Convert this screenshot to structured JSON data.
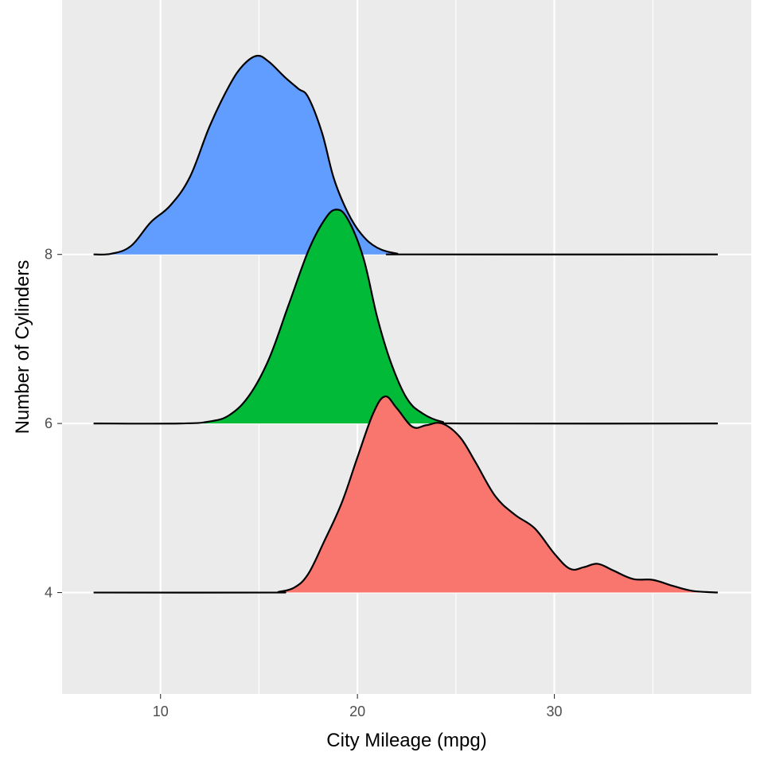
{
  "chart_data": {
    "type": "area",
    "subtype": "ridgeline",
    "xlabel": "City Mileage (mpg)",
    "ylabel": "Number of Cylinders",
    "xlim": [
      5.0,
      40.0
    ],
    "x_ticks": [
      10,
      20,
      30
    ],
    "x_tick_labels": [
      "10",
      "20",
      "30"
    ],
    "y_ticks": [
      "4",
      "6",
      "8"
    ],
    "ridge_scale_in_categories": 1.5,
    "grid": true,
    "legend": "none",
    "panel_color": "#EBEBEB",
    "series": [
      {
        "category": "8",
        "color": "#619CFF",
        "x_range": [
          6.6,
          38.3
        ],
        "points": [
          [
            6.6,
            0.0
          ],
          [
            7.5,
            0.004
          ],
          [
            8.5,
            0.05
          ],
          [
            9.5,
            0.19
          ],
          [
            10.5,
            0.29
          ],
          [
            11.5,
            0.46
          ],
          [
            12.5,
            0.76
          ],
          [
            13.5,
            1.0
          ],
          [
            14.2,
            1.12
          ],
          [
            14.9,
            1.175
          ],
          [
            15.5,
            1.14
          ],
          [
            16.3,
            1.05
          ],
          [
            17.0,
            0.98
          ],
          [
            17.5,
            0.93
          ],
          [
            18.2,
            0.72
          ],
          [
            18.8,
            0.45
          ],
          [
            19.5,
            0.25
          ],
          [
            20.2,
            0.12
          ],
          [
            21.0,
            0.04
          ],
          [
            22.0,
            0.005
          ],
          [
            23.0,
            0.0
          ],
          [
            38.3,
            0.0
          ]
        ]
      },
      {
        "category": "6",
        "color": "#00BA38",
        "x_range": [
          6.6,
          38.3
        ],
        "points": [
          [
            6.6,
            0.0
          ],
          [
            11.0,
            0.0
          ],
          [
            12.5,
            0.012
          ],
          [
            13.5,
            0.05
          ],
          [
            14.5,
            0.165
          ],
          [
            15.5,
            0.38
          ],
          [
            16.5,
            0.7
          ],
          [
            17.5,
            1.02
          ],
          [
            18.3,
            1.2
          ],
          [
            18.9,
            1.265
          ],
          [
            19.5,
            1.21
          ],
          [
            20.3,
            0.98
          ],
          [
            21.0,
            0.63
          ],
          [
            21.7,
            0.36
          ],
          [
            22.5,
            0.15
          ],
          [
            23.3,
            0.06
          ],
          [
            24.3,
            0.01
          ],
          [
            25.5,
            0.0
          ],
          [
            38.3,
            0.0
          ]
        ]
      },
      {
        "category": "4",
        "color": "#F8766D",
        "x_range": [
          6.6,
          38.3
        ],
        "points": [
          [
            6.6,
            0.0
          ],
          [
            15.5,
            0.0
          ],
          [
            16.0,
            0.004
          ],
          [
            16.8,
            0.03
          ],
          [
            17.5,
            0.11
          ],
          [
            18.3,
            0.3
          ],
          [
            19.2,
            0.53
          ],
          [
            20.0,
            0.8
          ],
          [
            20.8,
            1.06
          ],
          [
            21.4,
            1.16
          ],
          [
            22.0,
            1.09
          ],
          [
            22.8,
            0.98
          ],
          [
            23.5,
            0.99
          ],
          [
            24.3,
            1.0
          ],
          [
            25.2,
            0.92
          ],
          [
            26.0,
            0.77
          ],
          [
            27.0,
            0.57
          ],
          [
            28.0,
            0.46
          ],
          [
            29.0,
            0.38
          ],
          [
            30.0,
            0.23
          ],
          [
            30.8,
            0.14
          ],
          [
            31.5,
            0.15
          ],
          [
            32.2,
            0.17
          ],
          [
            33.0,
            0.13
          ],
          [
            34.0,
            0.08
          ],
          [
            35.0,
            0.075
          ],
          [
            36.0,
            0.04
          ],
          [
            37.0,
            0.01
          ],
          [
            38.3,
            0.0
          ]
        ]
      }
    ]
  }
}
